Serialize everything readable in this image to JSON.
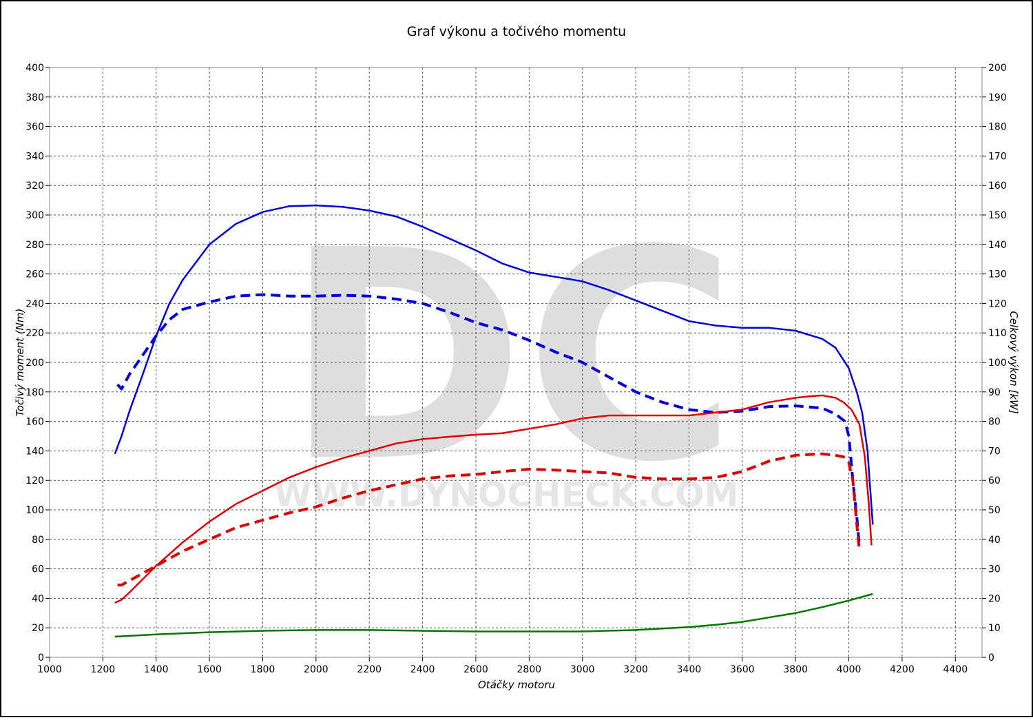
{
  "chart_data": {
    "type": "line",
    "title": "Graf výkonu a točivého momentu",
    "xlabel": "Otáčky motoru",
    "ylabel_left": "Točivý moment (Nm)",
    "ylabel_right": "Celkový výkon [kW]",
    "watermark_logo": "DC",
    "watermark_text": "WWW.DYNOCHECK.COM",
    "xlim": [
      1000,
      4500
    ],
    "ylim_left": [
      0,
      400
    ],
    "ylim_right": [
      0,
      200
    ],
    "grid": true,
    "xticks": [
      1000,
      1200,
      1400,
      1600,
      1800,
      2000,
      2200,
      2400,
      2600,
      2800,
      3000,
      3200,
      3400,
      3600,
      3800,
      4000,
      4200,
      4400
    ],
    "yticks_left": [
      0,
      20,
      40,
      60,
      80,
      100,
      120,
      140,
      160,
      180,
      200,
      220,
      240,
      260,
      280,
      300,
      320,
      340,
      360,
      380,
      400
    ],
    "yticks_right": [
      0,
      10,
      20,
      30,
      40,
      50,
      60,
      70,
      80,
      90,
      100,
      110,
      120,
      130,
      140,
      150,
      160,
      170,
      180,
      190,
      200
    ],
    "series": [
      {
        "color": "#0000dd",
        "dashed": false,
        "axis": "left",
        "points": [
          [
            1245,
            138
          ],
          [
            1270,
            150
          ],
          [
            1300,
            167
          ],
          [
            1350,
            192
          ],
          [
            1400,
            218
          ],
          [
            1450,
            240
          ],
          [
            1500,
            256
          ],
          [
            1600,
            280
          ],
          [
            1700,
            294
          ],
          [
            1800,
            302
          ],
          [
            1900,
            306
          ],
          [
            2000,
            306.5
          ],
          [
            2100,
            305.5
          ],
          [
            2200,
            303
          ],
          [
            2300,
            299
          ],
          [
            2400,
            292
          ],
          [
            2500,
            284
          ],
          [
            2600,
            276
          ],
          [
            2700,
            267
          ],
          [
            2800,
            261
          ],
          [
            2900,
            258
          ],
          [
            3000,
            255
          ],
          [
            3100,
            249
          ],
          [
            3200,
            242
          ],
          [
            3300,
            235
          ],
          [
            3400,
            228
          ],
          [
            3500,
            225
          ],
          [
            3600,
            223.5
          ],
          [
            3700,
            223.5
          ],
          [
            3800,
            221.5
          ],
          [
            3900,
            216
          ],
          [
            3950,
            210
          ],
          [
            4000,
            196
          ],
          [
            4030,
            180
          ],
          [
            4050,
            166
          ],
          [
            4070,
            140
          ],
          [
            4080,
            115
          ],
          [
            4090,
            90
          ]
        ]
      },
      {
        "color": "#0000dd",
        "dashed": true,
        "axis": "left",
        "points": [
          [
            1255,
            185
          ],
          [
            1270,
            182
          ],
          [
            1300,
            192
          ],
          [
            1350,
            205
          ],
          [
            1400,
            218
          ],
          [
            1450,
            229
          ],
          [
            1500,
            236
          ],
          [
            1600,
            241
          ],
          [
            1700,
            245
          ],
          [
            1800,
            246
          ],
          [
            1900,
            245
          ],
          [
            2000,
            245
          ],
          [
            2100,
            245.5
          ],
          [
            2200,
            245
          ],
          [
            2300,
            243
          ],
          [
            2400,
            240
          ],
          [
            2500,
            234
          ],
          [
            2600,
            227
          ],
          [
            2700,
            222
          ],
          [
            2800,
            215
          ],
          [
            2900,
            207
          ],
          [
            3000,
            200
          ],
          [
            3100,
            190
          ],
          [
            3200,
            180
          ],
          [
            3300,
            173
          ],
          [
            3400,
            168
          ],
          [
            3500,
            166
          ],
          [
            3600,
            167
          ],
          [
            3700,
            170
          ],
          [
            3800,
            170.5
          ],
          [
            3900,
            169
          ],
          [
            3950,
            165
          ],
          [
            3985,
            160
          ],
          [
            4000,
            150
          ],
          [
            4015,
            120
          ],
          [
            4030,
            95
          ],
          [
            4040,
            75
          ]
        ]
      },
      {
        "color": "#dd0000",
        "dashed": false,
        "axis": "right",
        "points": [
          [
            1245,
            18.5
          ],
          [
            1270,
            19.5
          ],
          [
            1300,
            22
          ],
          [
            1400,
            31
          ],
          [
            1500,
            39
          ],
          [
            1600,
            46
          ],
          [
            1700,
            52
          ],
          [
            1800,
            56.5
          ],
          [
            1900,
            61
          ],
          [
            2000,
            64.5
          ],
          [
            2100,
            67.5
          ],
          [
            2200,
            70
          ],
          [
            2300,
            72.5
          ],
          [
            2400,
            74
          ],
          [
            2500,
            74.8
          ],
          [
            2600,
            75.5
          ],
          [
            2700,
            76
          ],
          [
            2800,
            77.5
          ],
          [
            2900,
            79
          ],
          [
            3000,
            81
          ],
          [
            3100,
            82
          ],
          [
            3200,
            82
          ],
          [
            3300,
            82
          ],
          [
            3400,
            82
          ],
          [
            3500,
            83
          ],
          [
            3600,
            84
          ],
          [
            3700,
            86.5
          ],
          [
            3800,
            88
          ],
          [
            3850,
            88.5
          ],
          [
            3900,
            88.8
          ],
          [
            3950,
            88
          ],
          [
            3980,
            86.5
          ],
          [
            4010,
            84
          ],
          [
            4040,
            79
          ],
          [
            4060,
            68
          ],
          [
            4075,
            52
          ],
          [
            4085,
            38
          ]
        ]
      },
      {
        "color": "#dd0000",
        "dashed": true,
        "axis": "right",
        "points": [
          [
            1255,
            24.5
          ],
          [
            1270,
            24.5
          ],
          [
            1300,
            26
          ],
          [
            1400,
            31
          ],
          [
            1500,
            36
          ],
          [
            1600,
            40
          ],
          [
            1700,
            44
          ],
          [
            1800,
            46.5
          ],
          [
            1900,
            49
          ],
          [
            2000,
            51
          ],
          [
            2100,
            54
          ],
          [
            2200,
            56.5
          ],
          [
            2300,
            58.5
          ],
          [
            2400,
            60.5
          ],
          [
            2500,
            61.5
          ],
          [
            2600,
            62
          ],
          [
            2700,
            63
          ],
          [
            2800,
            63.8
          ],
          [
            2900,
            63.5
          ],
          [
            3000,
            63
          ],
          [
            3100,
            62.5
          ],
          [
            3200,
            61
          ],
          [
            3300,
            60.5
          ],
          [
            3400,
            60.5
          ],
          [
            3500,
            61
          ],
          [
            3600,
            63
          ],
          [
            3700,
            66.5
          ],
          [
            3800,
            68.5
          ],
          [
            3900,
            69
          ],
          [
            3950,
            68.5
          ],
          [
            3980,
            68
          ],
          [
            4000,
            66
          ],
          [
            4015,
            60
          ],
          [
            4030,
            45
          ],
          [
            4040,
            36
          ]
        ]
      },
      {
        "color": "#007700",
        "dashed": false,
        "axis": "left",
        "points": [
          [
            1245,
            14
          ],
          [
            1400,
            15.5
          ],
          [
            1600,
            17
          ],
          [
            1800,
            18
          ],
          [
            2000,
            18.5
          ],
          [
            2200,
            18.5
          ],
          [
            2400,
            18
          ],
          [
            2600,
            17.5
          ],
          [
            2800,
            17.5
          ],
          [
            3000,
            17.5
          ],
          [
            3200,
            18.5
          ],
          [
            3400,
            20.5
          ],
          [
            3500,
            22
          ],
          [
            3600,
            24
          ],
          [
            3700,
            27
          ],
          [
            3800,
            30
          ],
          [
            3900,
            34
          ],
          [
            4000,
            38.5
          ],
          [
            4090,
            43
          ]
        ]
      }
    ]
  }
}
